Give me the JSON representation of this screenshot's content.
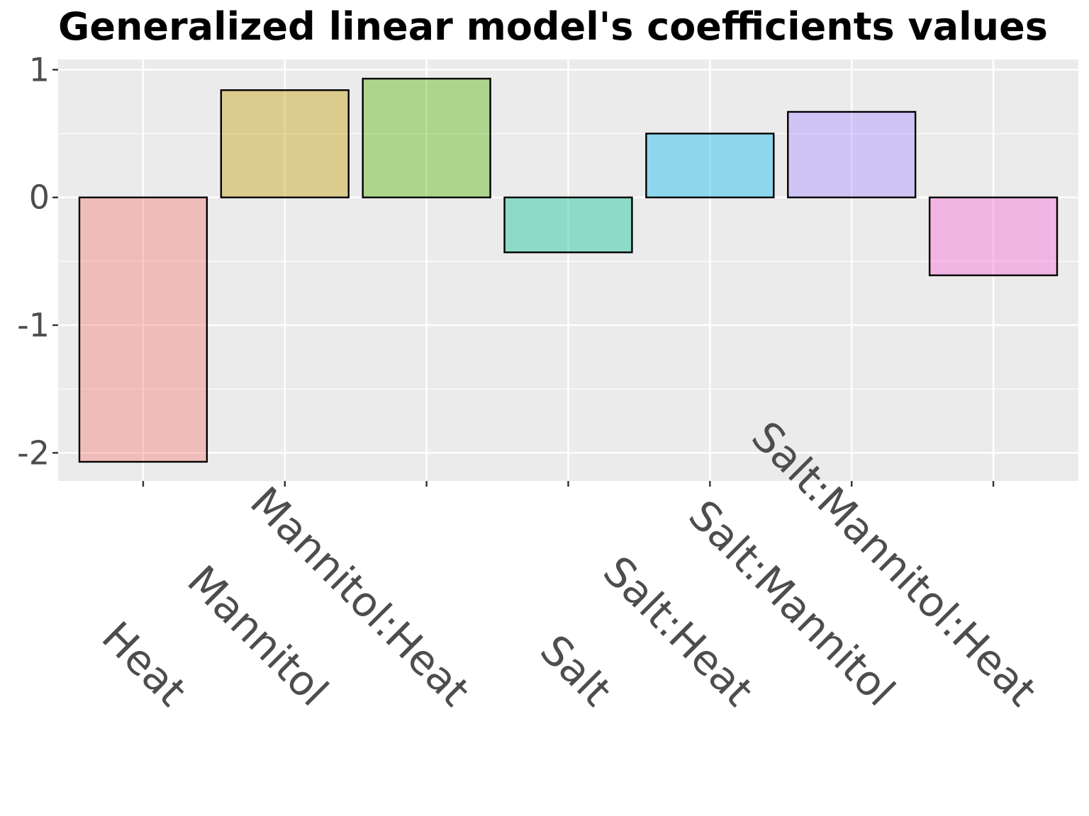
{
  "chart_data": {
    "type": "bar",
    "title": "Generalized linear model's coefficients values",
    "xlabel": "",
    "ylabel": "",
    "categories": [
      "Heat",
      "Mannitol",
      "Mannitol:Heat",
      "Salt",
      "Salt:Heat",
      "Salt:Mannitol",
      "Salt:Mannitol:Heat"
    ],
    "values": [
      -2.07,
      0.84,
      0.93,
      -0.43,
      0.5,
      0.67,
      -0.61
    ],
    "colors": [
      "#F8766D",
      "#C49A00",
      "#53B400",
      "#00C094",
      "#00B6EB",
      "#A58AFF",
      "#FB61D7"
    ],
    "ylim": [
      -2.22,
      1.08
    ],
    "yticks": [
      -2,
      -1,
      0,
      1
    ],
    "ytick_labels": [
      "-2",
      "-1",
      "0",
      "1"
    ],
    "grid": true,
    "legend": "none"
  }
}
